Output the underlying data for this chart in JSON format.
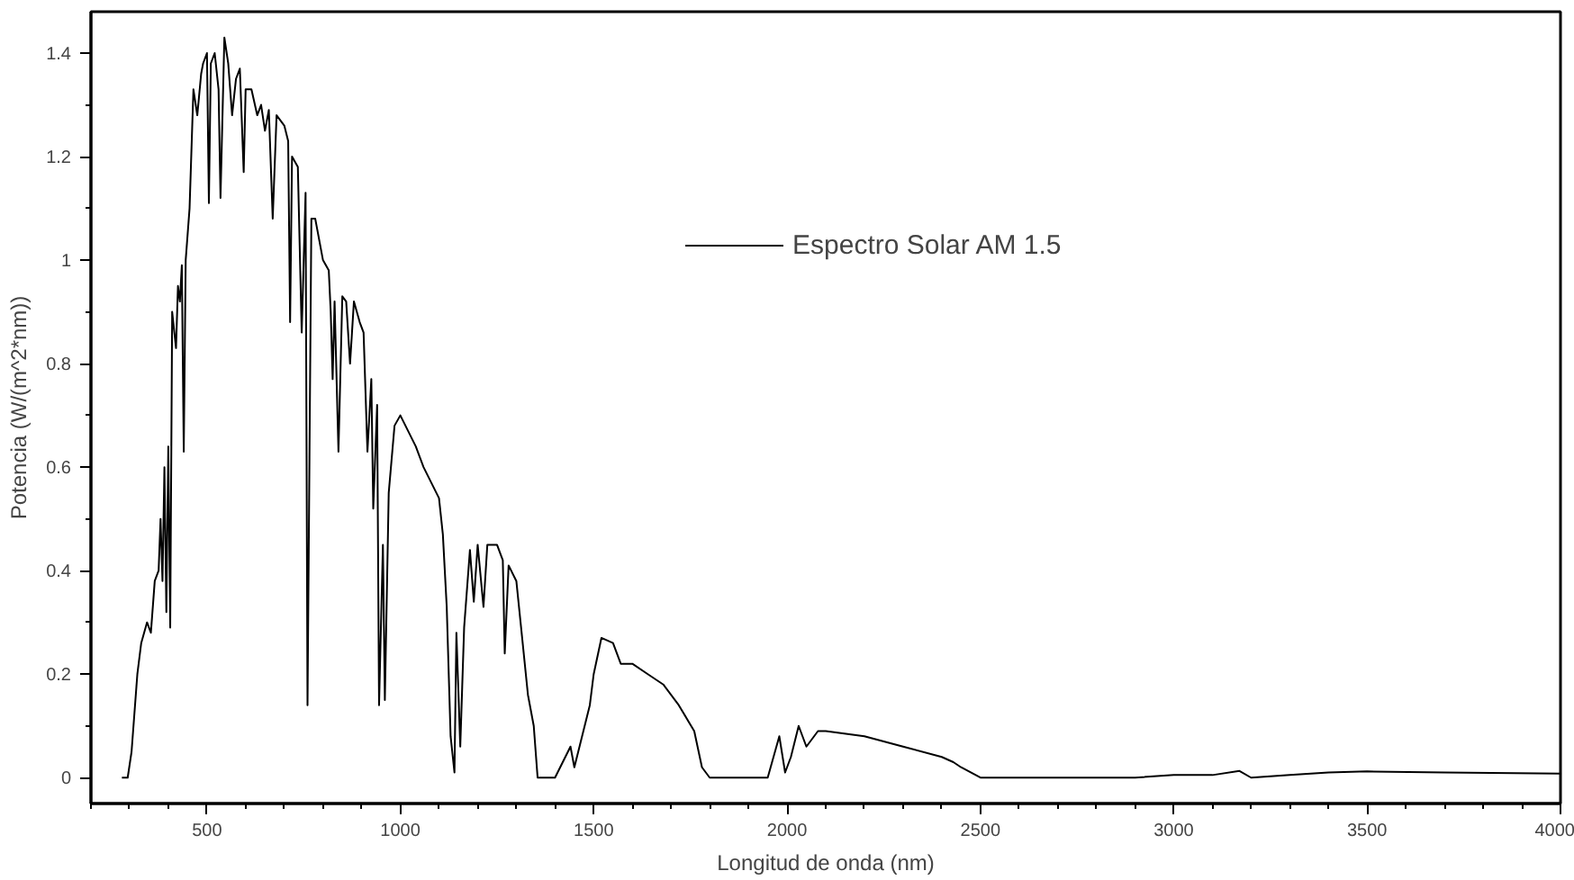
{
  "chart_data": {
    "type": "line",
    "xlabel": "Longitud de onda (nm)",
    "ylabel": "Potencia (W/(m^2*nm))",
    "xlim": [
      200,
      4000
    ],
    "xticks": [
      500,
      1000,
      1500,
      2000,
      2500,
      3000,
      3500,
      4000
    ],
    "ylim": [
      -0.05,
      1.48
    ],
    "yticks": [
      0,
      0.2,
      0.4,
      0.6,
      0.8,
      1,
      1.2,
      1.4
    ],
    "grid": false,
    "legend": "top right",
    "marker": "none",
    "line_style": "solid",
    "series": [
      {
        "name": "Espectro Solar AM 1.5",
        "color": "#000000",
        "x": [
          280,
          295,
          305,
          320,
          330,
          345,
          355,
          365,
          375,
          380,
          385,
          390,
          395,
          400,
          405,
          410,
          420,
          425,
          430,
          435,
          440,
          445,
          455,
          465,
          475,
          485,
          490,
          500,
          505,
          510,
          520,
          530,
          535,
          545,
          555,
          565,
          575,
          585,
          595,
          600,
          615,
          630,
          640,
          650,
          660,
          670,
          680,
          700,
          710,
          715,
          720,
          735,
          745,
          755,
          760,
          770,
          780,
          800,
          815,
          820,
          825,
          830,
          840,
          850,
          860,
          870,
          880,
          895,
          905,
          915,
          925,
          930,
          940,
          945,
          955,
          960,
          970,
          985,
          1000,
          1020,
          1040,
          1060,
          1080,
          1100,
          1110,
          1120,
          1130,
          1140,
          1145,
          1155,
          1165,
          1180,
          1190,
          1200,
          1215,
          1225,
          1250,
          1265,
          1270,
          1280,
          1300,
          1315,
          1330,
          1345,
          1355,
          1400,
          1420,
          1440,
          1450,
          1470,
          1490,
          1500,
          1520,
          1550,
          1570,
          1600,
          1640,
          1680,
          1720,
          1760,
          1780,
          1800,
          1950,
          1980,
          1995,
          2010,
          2030,
          2050,
          2080,
          2100,
          2200,
          2300,
          2400,
          2430,
          2450,
          2500,
          2900,
          3000,
          3100,
          3170,
          3200,
          3300,
          3400,
          3500,
          3700,
          4000
        ],
        "values": [
          0,
          0,
          0.05,
          0.2,
          0.26,
          0.3,
          0.28,
          0.38,
          0.4,
          0.5,
          0.38,
          0.6,
          0.32,
          0.64,
          0.29,
          0.9,
          0.83,
          0.95,
          0.92,
          0.99,
          0.63,
          1.0,
          1.1,
          1.33,
          1.28,
          1.36,
          1.38,
          1.4,
          1.11,
          1.38,
          1.4,
          1.33,
          1.12,
          1.43,
          1.38,
          1.28,
          1.35,
          1.37,
          1.17,
          1.33,
          1.33,
          1.28,
          1.3,
          1.25,
          1.29,
          1.08,
          1.28,
          1.26,
          1.23,
          0.88,
          1.2,
          1.18,
          0.86,
          1.13,
          0.14,
          1.08,
          1.08,
          1.0,
          0.98,
          0.9,
          0.77,
          0.92,
          0.63,
          0.93,
          0.92,
          0.8,
          0.92,
          0.88,
          0.86,
          0.63,
          0.77,
          0.52,
          0.72,
          0.14,
          0.45,
          0.15,
          0.55,
          0.68,
          0.7,
          0.67,
          0.64,
          0.6,
          0.57,
          0.54,
          0.47,
          0.33,
          0.08,
          0.01,
          0.28,
          0.06,
          0.29,
          0.44,
          0.34,
          0.45,
          0.33,
          0.45,
          0.45,
          0.42,
          0.24,
          0.41,
          0.38,
          0.27,
          0.16,
          0.1,
          0,
          0,
          0.03,
          0.06,
          0.02,
          0.08,
          0.14,
          0.2,
          0.27,
          0.26,
          0.22,
          0.22,
          0.2,
          0.18,
          0.14,
          0.09,
          0.02,
          0,
          0,
          0.08,
          0.01,
          0.04,
          0.1,
          0.06,
          0.09,
          0.09,
          0.08,
          0.06,
          0.04,
          0.03,
          0.02,
          0,
          0,
          0.005,
          0.005,
          0.013,
          0,
          0.005,
          0.01,
          0.012,
          0.01,
          0.008
        ]
      }
    ]
  }
}
